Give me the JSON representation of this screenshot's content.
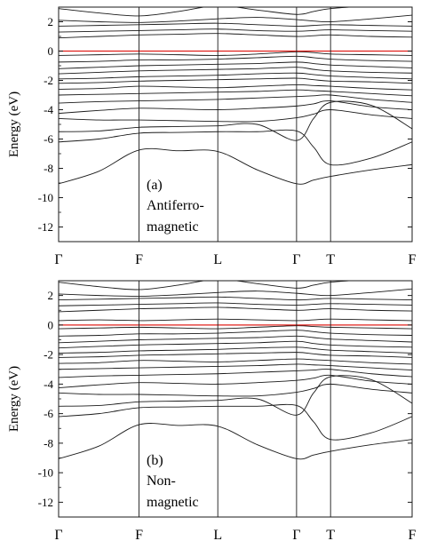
{
  "chart_data": [
    {
      "type": "line",
      "panel_label": "(a)",
      "annotation_lines": [
        "Antiferro-",
        "magnetic"
      ],
      "ylabel": "Energy (eV)",
      "ylim": [
        -13,
        3
      ],
      "yticks": [
        2,
        0,
        -2,
        -4,
        -6,
        -8,
        -10,
        -12
      ],
      "ytick_labels": [
        "2",
        "0",
        "-2",
        "-4",
        "-6",
        "-8",
        "-10",
        "-12"
      ],
      "kpoints": [
        "Γ",
        "F",
        "L",
        "Γ",
        "T",
        "F"
      ],
      "kpoint_positions": [
        0,
        0.2275,
        0.4503,
        0.6731,
        0.7693,
        1.0
      ],
      "fermi_level": 0,
      "fermi_color": "#e0201b",
      "band_color": "#1a1a1a",
      "band_samples_x": [
        0,
        0.1138,
        0.2275,
        0.3389,
        0.4503,
        0.5617,
        0.6731,
        0.7212,
        0.7693,
        0.8847,
        1.0
      ],
      "bands": [
        [
          -9.05,
          -8.2,
          -6.75,
          -6.8,
          -6.85,
          -8.1,
          -9.05,
          -8.8,
          -8.55,
          -8.1,
          -7.75
        ],
        [
          -6.2,
          -6.0,
          -5.6,
          -5.55,
          -5.5,
          -5.5,
          -5.45,
          -6.55,
          -7.75,
          -7.3,
          -6.2
        ],
        [
          -5.5,
          -5.45,
          -5.2,
          -5.15,
          -5.1,
          -5.0,
          -6.1,
          -4.6,
          -3.5,
          -3.7,
          -5.3
        ],
        [
          -4.6,
          -4.7,
          -4.7,
          -4.75,
          -4.8,
          -4.8,
          -4.55,
          -4.3,
          -4.0,
          -4.35,
          -4.6
        ],
        [
          -4.25,
          -4.05,
          -3.9,
          -3.95,
          -4.0,
          -3.9,
          -3.75,
          -3.6,
          -3.4,
          -3.8,
          -4.0
        ],
        [
          -3.55,
          -3.45,
          -3.4,
          -3.35,
          -3.3,
          -3.2,
          -3.1,
          -3.05,
          -3.0,
          -3.3,
          -3.5
        ],
        [
          -3.0,
          -2.95,
          -2.9,
          -2.85,
          -2.8,
          -2.75,
          -2.65,
          -2.7,
          -2.75,
          -2.9,
          -3.05
        ],
        [
          -2.6,
          -2.55,
          -2.4,
          -2.45,
          -2.5,
          -2.4,
          -2.3,
          -2.35,
          -2.4,
          -2.55,
          -2.65
        ],
        [
          -2.2,
          -2.15,
          -2.05,
          -2.0,
          -1.95,
          -1.9,
          -1.85,
          -1.95,
          -2.05,
          -2.1,
          -2.2
        ],
        [
          -1.9,
          -1.85,
          -1.75,
          -1.7,
          -1.65,
          -1.55,
          -1.5,
          -1.6,
          -1.7,
          -1.8,
          -1.9
        ],
        [
          -1.55,
          -1.45,
          -1.35,
          -1.3,
          -1.25,
          -1.2,
          -1.1,
          -1.25,
          -1.35,
          -1.45,
          -1.5
        ],
        [
          -1.2,
          -1.1,
          -1.0,
          -0.95,
          -0.9,
          -0.85,
          -0.75,
          -0.85,
          -0.95,
          -1.05,
          -1.15
        ],
        [
          -0.75,
          -0.7,
          -0.6,
          -0.6,
          -0.55,
          -0.45,
          -0.35,
          -0.45,
          -0.55,
          -0.65,
          -0.7
        ],
        [
          -0.3,
          -0.25,
          -0.2,
          -0.25,
          -0.3,
          -0.2,
          -0.05,
          -0.1,
          -0.2,
          -0.25,
          -0.3
        ],
        [
          0.9,
          1.0,
          1.1,
          1.15,
          1.2,
          1.1,
          1.0,
          1.05,
          1.1,
          1.0,
          0.95
        ],
        [
          1.3,
          1.35,
          1.4,
          1.45,
          1.5,
          1.4,
          1.35,
          1.4,
          1.45,
          1.4,
          1.35
        ],
        [
          1.7,
          1.75,
          1.8,
          1.85,
          1.9,
          1.8,
          1.7,
          1.75,
          1.8,
          1.75,
          1.7
        ],
        [
          2.1,
          2.0,
          1.95,
          2.05,
          2.2,
          2.3,
          2.15,
          2.05,
          2.0,
          2.2,
          2.45
        ],
        [
          2.9,
          2.6,
          2.4,
          2.7,
          3.1,
          2.8,
          2.5,
          2.7,
          2.9,
          3.1,
          3.3
        ]
      ]
    },
    {
      "type": "line",
      "panel_label": "(b)",
      "annotation_lines": [
        "Non-",
        "magnetic"
      ],
      "ylabel": "Energy (eV)",
      "ylim": [
        -13,
        3
      ],
      "yticks": [
        2,
        0,
        -2,
        -4,
        -6,
        -8,
        -10,
        -12
      ],
      "ytick_labels": [
        "2",
        "0",
        "-2",
        "-4",
        "-6",
        "-8",
        "-10",
        "-12"
      ],
      "kpoints": [
        "Γ",
        "F",
        "L",
        "Γ",
        "T",
        "F"
      ],
      "kpoint_positions": [
        0,
        0.2275,
        0.4503,
        0.6731,
        0.7693,
        1.0
      ],
      "fermi_level": 0,
      "fermi_color": "#e0201b",
      "band_color": "#1a1a1a",
      "band_samples_x": [
        0,
        0.1138,
        0.2275,
        0.3389,
        0.4503,
        0.5617,
        0.6731,
        0.7212,
        0.7693,
        0.8847,
        1.0
      ],
      "bands": [
        [
          -9.05,
          -8.2,
          -6.75,
          -6.8,
          -6.85,
          -8.1,
          -9.05,
          -8.8,
          -8.55,
          -8.1,
          -7.75
        ],
        [
          -6.2,
          -6.0,
          -5.6,
          -5.55,
          -5.5,
          -5.5,
          -5.45,
          -6.55,
          -7.75,
          -7.3,
          -6.2
        ],
        [
          -5.5,
          -5.45,
          -5.2,
          -5.15,
          -5.1,
          -5.0,
          -6.1,
          -4.6,
          -3.5,
          -3.7,
          -5.3
        ],
        [
          -4.6,
          -4.7,
          -4.7,
          -4.75,
          -4.8,
          -4.8,
          -4.55,
          -4.3,
          -4.0,
          -4.35,
          -4.6
        ],
        [
          -4.25,
          -4.05,
          -3.9,
          -3.95,
          -4.0,
          -3.9,
          -3.75,
          -3.6,
          -3.4,
          -3.8,
          -4.0
        ],
        [
          -3.55,
          -3.45,
          -3.4,
          -3.35,
          -3.3,
          -3.2,
          -3.1,
          -3.05,
          -3.0,
          -3.3,
          -3.5
        ],
        [
          -3.0,
          -2.95,
          -2.9,
          -2.85,
          -2.8,
          -2.75,
          -2.65,
          -2.7,
          -2.75,
          -2.9,
          -3.05
        ],
        [
          -2.6,
          -2.55,
          -2.4,
          -2.45,
          -2.5,
          -2.4,
          -2.3,
          -2.35,
          -2.4,
          -2.55,
          -2.65
        ],
        [
          -2.2,
          -2.15,
          -2.05,
          -2.0,
          -1.95,
          -1.9,
          -1.85,
          -1.95,
          -2.05,
          -2.1,
          -2.2
        ],
        [
          -1.9,
          -1.85,
          -1.75,
          -1.7,
          -1.65,
          -1.55,
          -1.5,
          -1.6,
          -1.7,
          -1.8,
          -1.9
        ],
        [
          -1.55,
          -1.45,
          -1.35,
          -1.3,
          -1.25,
          -1.2,
          -1.1,
          -1.25,
          -1.35,
          -1.45,
          -1.5
        ],
        [
          -1.2,
          -1.1,
          -1.0,
          -0.95,
          -0.9,
          -0.85,
          -0.75,
          -0.85,
          -0.95,
          -1.05,
          -1.15
        ],
        [
          -0.75,
          -0.7,
          -0.6,
          -0.6,
          -0.55,
          -0.45,
          -0.35,
          -0.45,
          -0.55,
          -0.65,
          -0.7
        ],
        [
          -0.25,
          -0.2,
          -0.15,
          -0.2,
          -0.25,
          -0.15,
          -0.05,
          -0.1,
          -0.15,
          -0.2,
          -0.25
        ],
        [
          0.3,
          0.35,
          0.3,
          0.35,
          0.4,
          0.35,
          0.3,
          0.35,
          0.4,
          0.35,
          0.3
        ],
        [
          0.9,
          1.0,
          1.1,
          1.15,
          1.2,
          1.1,
          1.0,
          1.05,
          1.1,
          1.0,
          0.95
        ],
        [
          1.3,
          1.35,
          1.4,
          1.45,
          1.5,
          1.4,
          1.35,
          1.4,
          1.45,
          1.4,
          1.35
        ],
        [
          1.7,
          1.75,
          1.8,
          1.85,
          1.9,
          1.8,
          1.7,
          1.75,
          1.8,
          1.75,
          1.7
        ],
        [
          2.1,
          2.0,
          1.95,
          2.05,
          2.2,
          2.3,
          2.15,
          2.05,
          2.0,
          2.2,
          2.45
        ],
        [
          2.9,
          2.6,
          2.4,
          2.7,
          3.1,
          2.8,
          2.5,
          2.7,
          2.9,
          3.1,
          3.3
        ]
      ]
    }
  ]
}
